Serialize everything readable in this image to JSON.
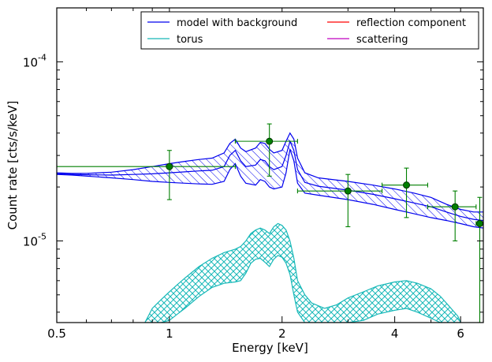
{
  "chart_data": {
    "type": "line",
    "title": "",
    "xlabel": "Energy [keV]",
    "ylabel": "Count rate [cts/s/keV]",
    "xscale": "log",
    "yscale": "log",
    "xlim": [
      0.5,
      6.9
    ],
    "ylim": [
      3.5e-06,
      0.0002
    ],
    "x_ticks": [
      {
        "value": 0.5,
        "label": "0.5"
      },
      {
        "value": 1,
        "label": "1"
      },
      {
        "value": 2,
        "label": "2"
      },
      {
        "value": 4,
        "label": "4"
      },
      {
        "value": 6,
        "label": "6"
      }
    ],
    "y_ticks": [
      {
        "value": 1e-05,
        "label": "10",
        "exp": "-5"
      },
      {
        "value": 0.0001,
        "label": "10",
        "exp": "-4"
      }
    ],
    "legend": {
      "placement": "top-right",
      "entries": [
        {
          "label": "model with background",
          "color": "#0000ee"
        },
        {
          "label": "torus",
          "color": "#17b8b8"
        },
        {
          "label": "reflection component",
          "color": "#ff0000"
        },
        {
          "label": "scattering",
          "color": "#bf00bf"
        }
      ]
    },
    "series": [
      {
        "name": "model with background",
        "color": "#0000ee",
        "style": "band",
        "x": [
          0.5,
          0.55,
          0.6,
          0.7,
          0.8,
          0.9,
          1.0,
          1.1,
          1.2,
          1.3,
          1.4,
          1.45,
          1.5,
          1.55,
          1.6,
          1.7,
          1.75,
          1.8,
          1.85,
          1.9,
          2.0,
          2.05,
          2.1,
          2.15,
          2.2,
          2.3,
          2.5,
          3.0,
          3.5,
          4.0,
          4.5,
          5.0,
          5.5,
          6.0,
          6.5,
          6.9
        ],
        "upper": [
          2.4e-05,
          2.38e-05,
          2.38e-05,
          2.42e-05,
          2.5e-05,
          2.6e-05,
          2.7e-05,
          2.78e-05,
          2.85e-05,
          2.9e-05,
          3.1e-05,
          3.5e-05,
          3.7e-05,
          3.3e-05,
          3.15e-05,
          3.3e-05,
          3.55e-05,
          3.5e-05,
          3.25e-05,
          3.1e-05,
          3.2e-05,
          3.6e-05,
          4e-05,
          3.7e-05,
          2.9e-05,
          2.4e-05,
          2.25e-05,
          2.15e-05,
          2.05e-05,
          1.95e-05,
          1.85e-05,
          1.75e-05,
          1.6e-05,
          1.5e-05,
          1.45e-05,
          1.45e-05
        ],
        "lower": [
          2.35e-05,
          2.33e-05,
          2.3e-05,
          2.25e-05,
          2.2e-05,
          2.15e-05,
          2.12e-05,
          2.1e-05,
          2.08e-05,
          2.07e-05,
          2.15e-05,
          2.5e-05,
          2.7e-05,
          2.3e-05,
          2.1e-05,
          2.05e-05,
          2.2e-05,
          2.15e-05,
          2e-05,
          1.95e-05,
          2e-05,
          2.4e-05,
          3.25e-05,
          2.8e-05,
          2.1e-05,
          1.85e-05,
          1.8e-05,
          1.7e-05,
          1.6e-05,
          1.5e-05,
          1.42e-05,
          1.35e-05,
          1.3e-05,
          1.25e-05,
          1.2e-05,
          1.18e-05
        ],
        "mid": [
          2.37e-05,
          2.35e-05,
          2.34e-05,
          2.33e-05,
          2.35e-05,
          2.37e-05,
          2.4e-05,
          2.43e-05,
          2.46e-05,
          2.48e-05,
          2.6e-05,
          3e-05,
          3.2e-05,
          2.8e-05,
          2.6e-05,
          2.65e-05,
          2.85e-05,
          2.8e-05,
          2.6e-05,
          2.5e-05,
          2.6e-05,
          3e-05,
          3.6e-05,
          3.2e-05,
          2.5e-05,
          2.12e-05,
          2.02e-05,
          1.92e-05,
          1.82e-05,
          1.72e-05,
          1.63e-05,
          1.55e-05,
          1.45e-05,
          1.37e-05,
          1.32e-05,
          1.3e-05
        ]
      },
      {
        "name": "torus",
        "color": "#17b8b8",
        "style": "band",
        "x": [
          0.86,
          0.9,
          0.95,
          1.0,
          1.05,
          1.1,
          1.2,
          1.3,
          1.4,
          1.5,
          1.55,
          1.6,
          1.65,
          1.7,
          1.75,
          1.8,
          1.85,
          1.9,
          1.95,
          2.0,
          2.05,
          2.1,
          2.15,
          2.2,
          2.3,
          2.4,
          2.6,
          2.8,
          3.0,
          3.3,
          3.6,
          4.0,
          4.3,
          4.6,
          5.0,
          5.3,
          5.6,
          5.9,
          6.0
        ],
        "upper": [
          3.5e-06,
          4.2e-06,
          4.7e-06,
          5.2e-06,
          5.7e-06,
          6.2e-06,
          7.2e-06,
          8e-06,
          8.6e-06,
          9e-06,
          9.3e-06,
          1e-05,
          1.1e-05,
          1.15e-05,
          1.18e-05,
          1.15e-05,
          1.1e-05,
          1.2e-05,
          1.25e-05,
          1.22e-05,
          1.15e-05,
          1e-05,
          8e-06,
          6e-06,
          5e-06,
          4.5e-06,
          4.2e-06,
          4.4e-06,
          4.8e-06,
          5.2e-06,
          5.6e-06,
          5.9e-06,
          6e-06,
          5.8e-06,
          5.4e-06,
          4.9e-06,
          4.3e-06,
          3.8e-06,
          3.5e-06
        ],
        "lower": [
          3.5e-06,
          3.5e-06,
          3.5e-06,
          3.6e-06,
          3.9e-06,
          4.2e-06,
          4.9e-06,
          5.5e-06,
          5.8e-06,
          5.9e-06,
          6e-06,
          6.6e-06,
          7.5e-06,
          7.9e-06,
          8e-06,
          7.6e-06,
          7.2e-06,
          7.9e-06,
          8.3e-06,
          8.1e-06,
          7.5e-06,
          6.5e-06,
          5e-06,
          4e-06,
          3.5e-06,
          3.5e-06,
          3.5e-06,
          3.5e-06,
          3.5e-06,
          3.6e-06,
          3.9e-06,
          4.1e-06,
          4.2e-06,
          4e-06,
          3.7e-06,
          3.5e-06,
          3.5e-06,
          3.5e-06,
          3.5e-06
        ]
      },
      {
        "name": "data",
        "color": "#007f00",
        "style": "errorbar",
        "points": [
          {
            "x": 1.0,
            "y": 2.6e-05,
            "xlo": 0.5,
            "xhi": 1.5,
            "ylo": 1.7e-05,
            "yhi": 3.2e-05
          },
          {
            "x": 1.85,
            "y": 3.6e-05,
            "xlo": 1.5,
            "xhi": 2.2,
            "ylo": 2.3e-05,
            "yhi": 4.5e-05
          },
          {
            "x": 3.0,
            "y": 1.9e-05,
            "xlo": 2.2,
            "xhi": 3.7,
            "ylo": 1.2e-05,
            "yhi": 2.35e-05
          },
          {
            "x": 4.3,
            "y": 2.05e-05,
            "xlo": 3.7,
            "xhi": 4.9,
            "ylo": 1.35e-05,
            "yhi": 2.55e-05
          },
          {
            "x": 5.8,
            "y": 1.55e-05,
            "xlo": 4.9,
            "xhi": 6.6,
            "ylo": 1e-05,
            "yhi": 1.9e-05
          },
          {
            "x": 6.75,
            "y": 1.25e-05,
            "xlo": 6.6,
            "xhi": 6.9,
            "ylo": 3.5e-06,
            "yhi": 1.75e-05
          }
        ]
      }
    ]
  }
}
